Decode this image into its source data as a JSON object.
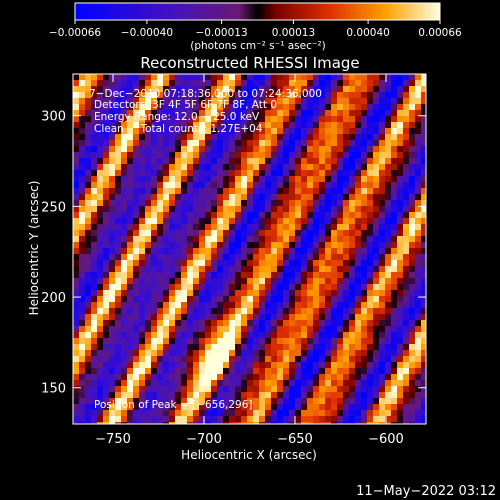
{
  "chart_data": {
    "type": "heatmap",
    "title": "Reconstructed RHESSI Image",
    "xlabel": "Heliocentric X (arcsec)",
    "ylabel": "Heliocentric Y (arcsec)",
    "xlim": [
      -772,
      -578
    ],
    "ylim": [
      130,
      323
    ],
    "xticks": [
      -750,
      -700,
      -650,
      -600
    ],
    "yticks": [
      150,
      200,
      250,
      300
    ],
    "xtick_labels": [
      "−750",
      "−700",
      "−650",
      "−600"
    ],
    "ytick_labels": [
      "150",
      "200",
      "250",
      "300"
    ],
    "colorbar": {
      "range": [
        -0.00066,
        0.00066
      ],
      "ticks": [
        -0.00066,
        -0.0004,
        -0.00013,
        0.00013,
        0.0004,
        0.00066
      ],
      "tick_labels": [
        "−0.00066",
        "−0.00040",
        "−0.00013",
        "0.00013",
        "0.00040",
        "0.00066"
      ],
      "units_label": "(photons cm⁻² s⁻¹ asec⁻²)"
    },
    "annotations": [
      "7−Dec−2010 07:18:36.000 to 07:24:36.000",
      "Detectors: 3F 4F 5F 6F 7F 8F, Att 0",
      "Energy Range: 12.0 − 25.0 keV",
      "Clean     Total counts: 1.27E+04"
    ],
    "peak_label": "Position of Peak = [−656,296]",
    "peak": [
      -656,
      296
    ],
    "grid": false
  },
  "footer": {
    "timestamp": "11−May−2022 03:12"
  }
}
